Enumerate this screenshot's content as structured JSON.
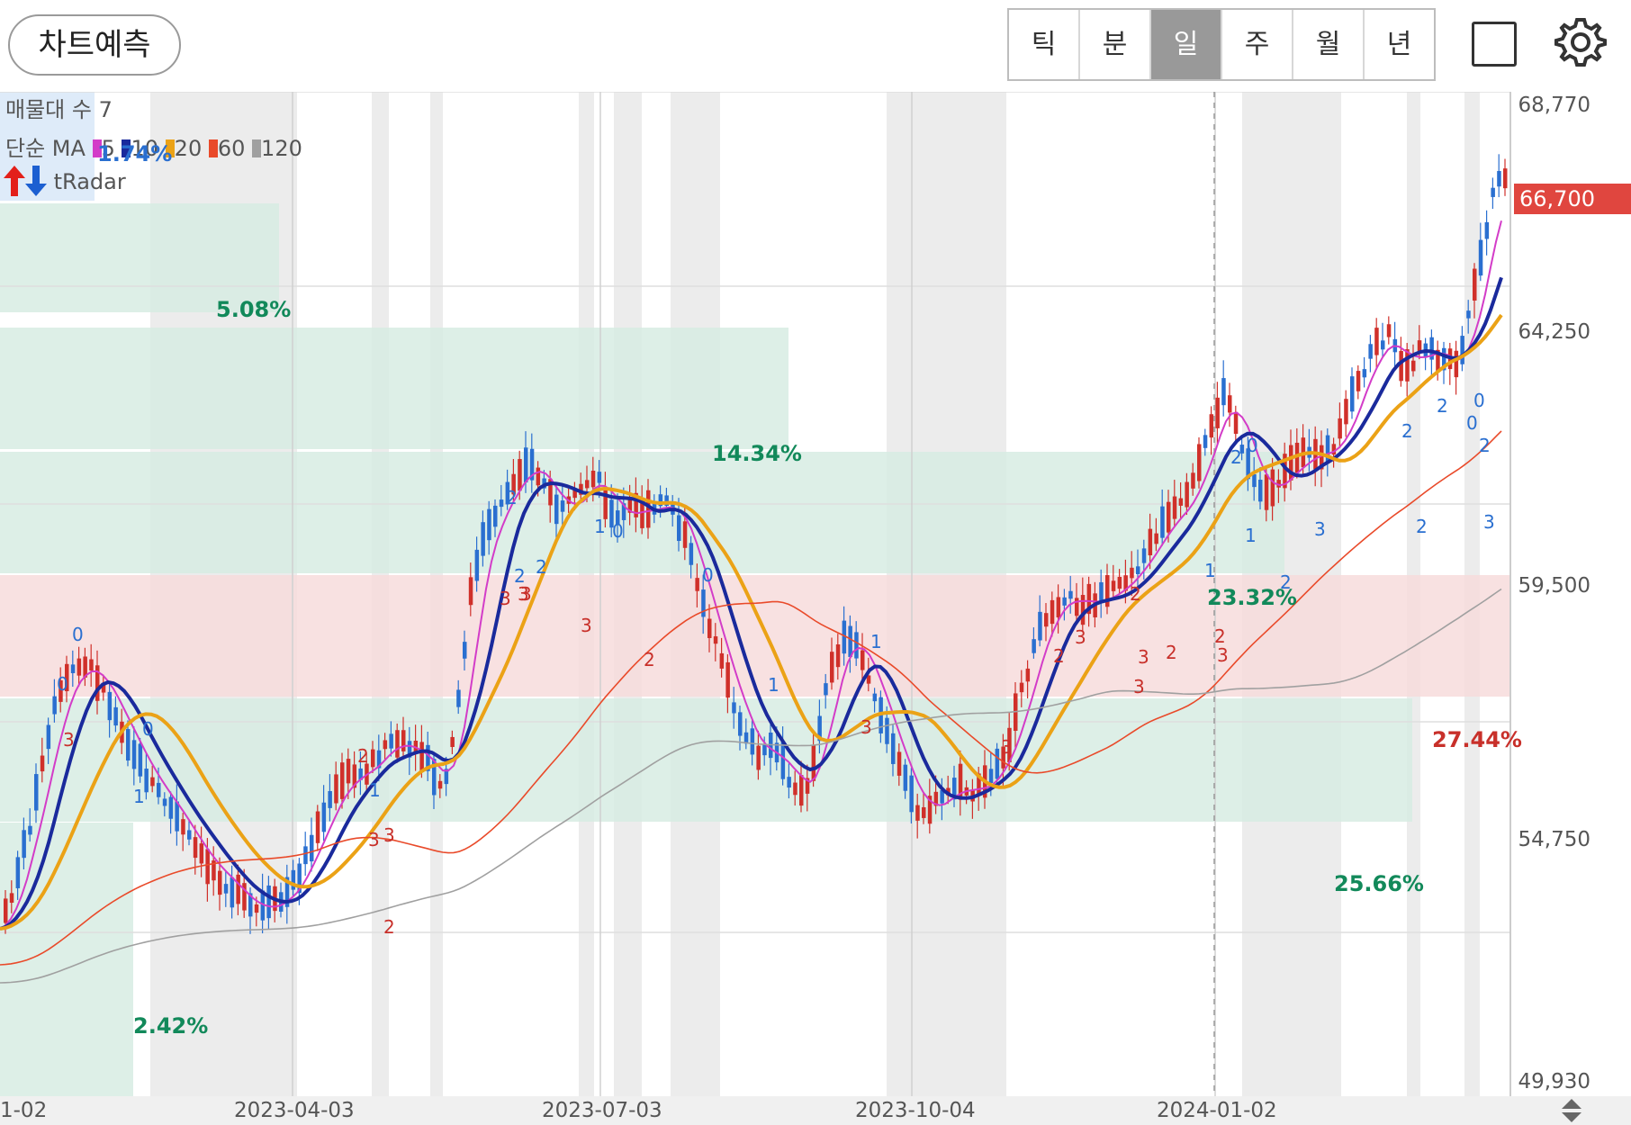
{
  "toolbar": {
    "predict_label": "차트예측",
    "period_tabs": [
      "틱",
      "분",
      "일",
      "주",
      "월",
      "년"
    ],
    "active_period": "일",
    "square_icon": "square-icon",
    "settings_icon": "gear-icon"
  },
  "legend": {
    "volume_profile": "매물대 수 7",
    "ma_label": "단순 MA",
    "ma_periods": [
      "5",
      "10",
      "20",
      "60",
      "120"
    ],
    "ma_colors": [
      "#d33cc8",
      "#1a2a9c",
      "#eba216",
      "#e94a2a",
      "#a0a0a0"
    ],
    "radar_label": "tRadar",
    "up_icon": "up-arrow-icon",
    "down_icon": "down-arrow-icon"
  },
  "price_axis": {
    "ticks": [
      "68,770",
      "64,250",
      "59,500",
      "54,750",
      "49,930"
    ],
    "current_price": "66,700"
  },
  "date_axis": {
    "labels": [
      "1-02",
      "2023-04-03",
      "2023-07-03",
      "2023-10-04",
      "2024-01-02"
    ]
  },
  "volume_profile": {
    "bands": [
      "1.74%",
      "5.08%",
      "14.34%",
      "23.32%",
      "27.44%",
      "25.66%",
      "2.42%"
    ]
  },
  "signals": [
    "0",
    "0",
    "3",
    "0",
    "1",
    "2",
    "1",
    "3",
    "3",
    "2",
    "1",
    "0",
    "3",
    "3",
    "2",
    "2",
    "2",
    "3",
    "3",
    "2",
    "1",
    "0",
    "1",
    "3",
    "3",
    "1",
    "0",
    "1",
    "2",
    "3",
    "3",
    "2",
    "2",
    "3",
    "3",
    "2",
    "2",
    "0",
    "2",
    "2",
    "2",
    "3",
    "2",
    "0",
    "3",
    "2"
  ],
  "colors": {
    "up": "#d0302a",
    "down": "#2a6fd0",
    "badge": "#e0463f",
    "band_green": "#d7ece3",
    "band_red": "#f7dcdc",
    "pct_green": "#12895a",
    "pct_red": "#c8302a",
    "pct_blue": "#2a6fd0"
  }
}
